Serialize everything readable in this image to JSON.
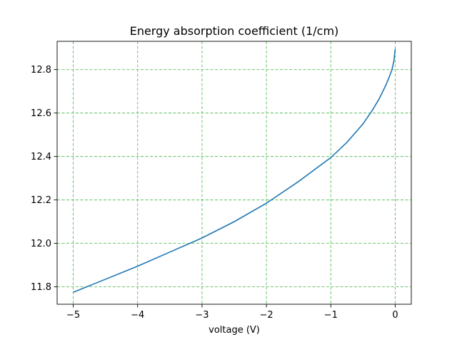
{
  "chart_data": {
    "type": "line",
    "title": "Energy absorption coefficient (1/cm)",
    "xlabel": "voltage (V)",
    "ylabel": "",
    "xlim": [
      -5.25,
      0.25
    ],
    "ylim": [
      11.72,
      12.93
    ],
    "grid": true,
    "grid_color": "#5cbf5c",
    "x_ticks": [
      {
        "value": -5,
        "label": "−5"
      },
      {
        "value": -4,
        "label": "−4"
      },
      {
        "value": -3,
        "label": "−3"
      },
      {
        "value": -2,
        "label": "−2"
      },
      {
        "value": -1,
        "label": "−1"
      },
      {
        "value": 0,
        "label": "0"
      }
    ],
    "y_ticks": [
      {
        "value": 11.8,
        "label": "11.8"
      },
      {
        "value": 12.0,
        "label": "12.0"
      },
      {
        "value": 12.2,
        "label": "12.2"
      },
      {
        "value": 12.4,
        "label": "12.4"
      },
      {
        "value": 12.6,
        "label": "12.6"
      },
      {
        "value": 12.8,
        "label": "12.8"
      }
    ],
    "series": [
      {
        "color": "#1f77b4",
        "x": [
          -5,
          -4.5,
          -4,
          -3.5,
          -3,
          -2.5,
          -2,
          -1.5,
          -1,
          -0.75,
          -0.5,
          -0.35,
          -0.25,
          -0.15,
          -0.1,
          -0.05,
          -0.02,
          0
        ],
        "y": [
          11.775,
          11.835,
          11.895,
          11.96,
          12.025,
          12.1,
          12.185,
          12.285,
          12.395,
          12.465,
          12.55,
          12.615,
          12.665,
          12.725,
          12.76,
          12.8,
          12.84,
          12.895
        ]
      }
    ]
  }
}
